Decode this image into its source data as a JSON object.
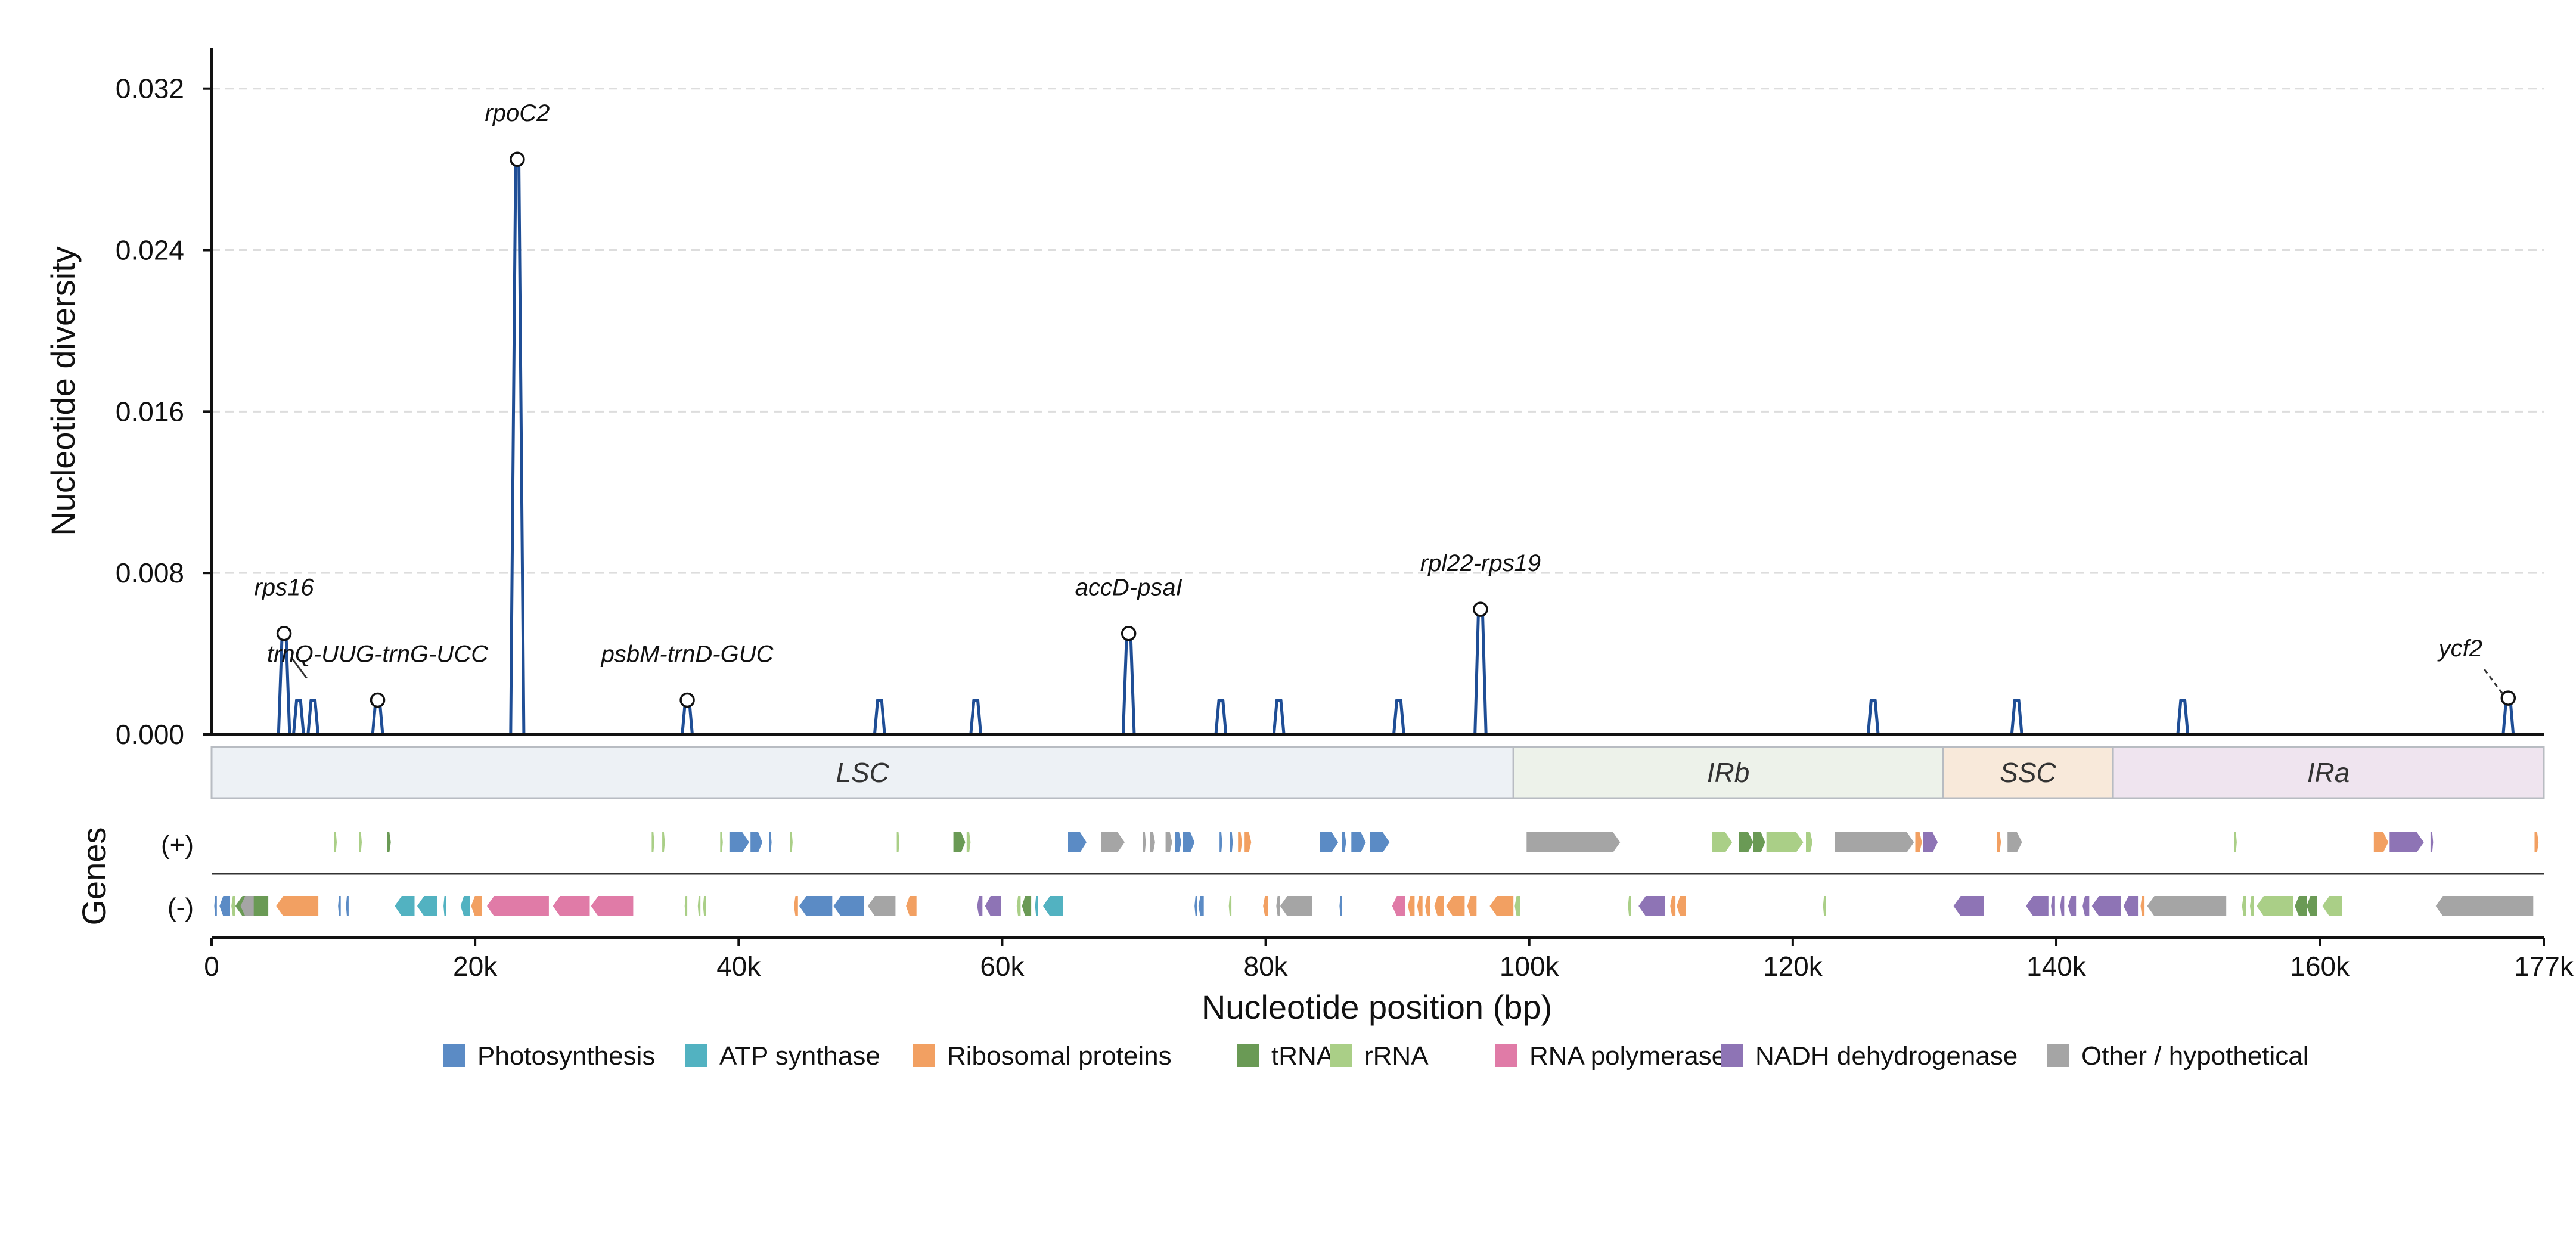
{
  "chart_data": {
    "type": "line",
    "ylabel": "Nucleotide diversity",
    "xlabel": "Nucleotide position (bp)",
    "genes_label": "Genes",
    "strand_plus_label": "(+)",
    "strand_minus_label": "(-)",
    "ylim": [
      0,
      0.034
    ],
    "xlim": [
      0,
      177000
    ],
    "yticks": [
      {
        "value": 0,
        "label": "0.000"
      },
      {
        "value": 0.008,
        "label": "0.008"
      },
      {
        "value": 0.016,
        "label": "0.016"
      },
      {
        "value": 0.024,
        "label": "0.024"
      },
      {
        "value": 0.032,
        "label": "0.032"
      }
    ],
    "xticks": [
      {
        "value": 0,
        "label": "0"
      },
      {
        "value": 20000,
        "label": "20k"
      },
      {
        "value": 40000,
        "label": "40k"
      },
      {
        "value": 60000,
        "label": "60k"
      },
      {
        "value": 80000,
        "label": "80k"
      },
      {
        "value": 100000,
        "label": "100k"
      },
      {
        "value": 120000,
        "label": "120k"
      },
      {
        "value": 140000,
        "label": "140k"
      },
      {
        "value": 160000,
        "label": "160k"
      },
      {
        "value": 177000,
        "label": "177k"
      }
    ],
    "grid": true,
    "line_color": "#1f4e96",
    "peaks": [
      {
        "x": 5500,
        "y": 0.005,
        "label": "rps16",
        "marker": true
      },
      {
        "x": 6600,
        "y": 0.0017,
        "label": "",
        "marker": false
      },
      {
        "x": 7700,
        "y": 0.0017,
        "label": "",
        "marker": false
      },
      {
        "x": 12600,
        "y": 0.0017,
        "label": "trnQ-UUG-trnG-UCC",
        "marker": true
      },
      {
        "x": 23200,
        "y": 0.0285,
        "label": "rpoC2",
        "marker": true
      },
      {
        "x": 36100,
        "y": 0.0017,
        "label": "psbM-trnD-GUC",
        "marker": true
      },
      {
        "x": 50700,
        "y": 0.0017,
        "label": "",
        "marker": false
      },
      {
        "x": 58000,
        "y": 0.0017,
        "label": "",
        "marker": false
      },
      {
        "x": 69600,
        "y": 0.005,
        "label": "accD-psaI",
        "marker": true
      },
      {
        "x": 76600,
        "y": 0.0017,
        "label": "",
        "marker": false
      },
      {
        "x": 81000,
        "y": 0.0017,
        "label": "",
        "marker": false
      },
      {
        "x": 90100,
        "y": 0.0017,
        "label": "",
        "marker": false
      },
      {
        "x": 96300,
        "y": 0.0062,
        "label": "rpl22-rps19",
        "marker": true
      },
      {
        "x": 126100,
        "y": 0.0017,
        "label": "",
        "marker": false
      },
      {
        "x": 137000,
        "y": 0.0017,
        "label": "",
        "marker": false
      },
      {
        "x": 149600,
        "y": 0.0017,
        "label": "",
        "marker": false
      },
      {
        "x": 174300,
        "y": 0.0018,
        "label": "ycf2",
        "marker": true
      }
    ],
    "regions": [
      {
        "name": "LSC",
        "start": 0,
        "end": 98800,
        "color": "#edf1f5"
      },
      {
        "name": "IRb",
        "start": 98800,
        "end": 131400,
        "color": "#edf2ea"
      },
      {
        "name": "SSC",
        "start": 131400,
        "end": 144300,
        "color": "#f8e9da"
      },
      {
        "name": "IRa",
        "start": 144300,
        "end": 177000,
        "color": "#efe4ef"
      }
    ],
    "legend": [
      {
        "name": "Photosynthesis",
        "color": "#5b8bc5"
      },
      {
        "name": "ATP synthase",
        "color": "#52b2c1"
      },
      {
        "name": "Ribosomal proteins",
        "color": "#f2a062"
      },
      {
        "name": "tRNA",
        "color": "#6a9a55"
      },
      {
        "name": "rRNA",
        "color": "#aacf87"
      },
      {
        "name": "RNA polymerase",
        "color": "#e07ba7"
      },
      {
        "name": "NADH dehydrogenase",
        "color": "#8e74b5"
      },
      {
        "name": "Other / hypothetical",
        "color": "#a5a5a5"
      }
    ],
    "genes_plus": [
      {
        "s": 9300,
        "e": 9500,
        "c": "#aacf87"
      },
      {
        "s": 11200,
        "e": 11400,
        "c": "#aacf87"
      },
      {
        "s": 13300,
        "e": 13600,
        "c": "#6a9a55"
      },
      {
        "s": 33400,
        "e": 33600,
        "c": "#aacf87"
      },
      {
        "s": 34200,
        "e": 34400,
        "c": "#aacf87"
      },
      {
        "s": 38600,
        "e": 38800,
        "c": "#aacf87"
      },
      {
        "s": 39300,
        "e": 40800,
        "c": "#5b8bc5"
      },
      {
        "s": 40900,
        "e": 41800,
        "c": "#5b8bc5"
      },
      {
        "s": 42300,
        "e": 42500,
        "c": "#5b8bc5"
      },
      {
        "s": 43900,
        "e": 44100,
        "c": "#aacf87"
      },
      {
        "s": 52000,
        "e": 52200,
        "c": "#aacf87"
      },
      {
        "s": 56300,
        "e": 57200,
        "c": "#6a9a55"
      },
      {
        "s": 57300,
        "e": 57600,
        "c": "#aacf87"
      },
      {
        "s": 65000,
        "e": 66400,
        "c": "#5b8bc5"
      },
      {
        "s": 67500,
        "e": 69300,
        "c": "#a5a5a5"
      },
      {
        "s": 70700,
        "e": 70900,
        "c": "#a5a5a5"
      },
      {
        "s": 71200,
        "e": 71600,
        "c": "#a5a5a5"
      },
      {
        "s": 72400,
        "e": 72900,
        "c": "#a5a5a5"
      },
      {
        "s": 73100,
        "e": 73600,
        "c": "#5b8bc5"
      },
      {
        "s": 73700,
        "e": 74600,
        "c": "#5b8bc5"
      },
      {
        "s": 76500,
        "e": 76700,
        "c": "#5b8bc5"
      },
      {
        "s": 77300,
        "e": 77500,
        "c": "#5b8bc5"
      },
      {
        "s": 77900,
        "e": 78200,
        "c": "#f2a062"
      },
      {
        "s": 78400,
        "e": 78900,
        "c": "#f2a062"
      },
      {
        "s": 84100,
        "e": 85500,
        "c": "#5b8bc5"
      },
      {
        "s": 85800,
        "e": 86100,
        "c": "#5b8bc5"
      },
      {
        "s": 86500,
        "e": 87600,
        "c": "#5b8bc5"
      },
      {
        "s": 87900,
        "e": 89400,
        "c": "#5b8bc5"
      },
      {
        "s": 99800,
        "e": 106900,
        "c": "#a5a5a5"
      },
      {
        "s": 113900,
        "e": 115400,
        "c": "#aacf87"
      },
      {
        "s": 115900,
        "e": 117000,
        "c": "#6a9a55"
      },
      {
        "s": 117000,
        "e": 117900,
        "c": "#6a9a55"
      },
      {
        "s": 118000,
        "e": 120800,
        "c": "#aacf87"
      },
      {
        "s": 121000,
        "e": 121500,
        "c": "#aacf87"
      },
      {
        "s": 123200,
        "e": 129200,
        "c": "#a5a5a5"
      },
      {
        "s": 129300,
        "e": 129800,
        "c": "#f2a062"
      },
      {
        "s": 129900,
        "e": 131000,
        "c": "#8e74b5"
      },
      {
        "s": 135500,
        "e": 135800,
        "c": "#f2a062"
      },
      {
        "s": 136300,
        "e": 137400,
        "c": "#a5a5a5"
      },
      {
        "s": 153500,
        "e": 153700,
        "c": "#aacf87"
      },
      {
        "s": 164100,
        "e": 165200,
        "c": "#f2a062"
      },
      {
        "s": 165300,
        "e": 167900,
        "c": "#8e74b5"
      },
      {
        "s": 168400,
        "e": 168600,
        "c": "#8e74b5"
      },
      {
        "s": 176300,
        "e": 176600,
        "c": "#f2a062"
      }
    ],
    "genes_minus": [
      {
        "s": 200,
        "e": 400,
        "c": "#5b8bc5"
      },
      {
        "s": 600,
        "e": 1400,
        "c": "#5b8bc5"
      },
      {
        "s": 1500,
        "e": 1800,
        "c": "#aacf87"
      },
      {
        "s": 1800,
        "e": 4300,
        "c": "#6a9a55"
      },
      {
        "s": 2200,
        "e": 3200,
        "c": "#a5a5a5"
      },
      {
        "s": 4900,
        "e": 8100,
        "c": "#f2a062"
      },
      {
        "s": 9600,
        "e": 9800,
        "c": "#5b8bc5"
      },
      {
        "s": 10200,
        "e": 10400,
        "c": "#5b8bc5"
      },
      {
        "s": 13900,
        "e": 15400,
        "c": "#52b2c1"
      },
      {
        "s": 15600,
        "e": 17100,
        "c": "#52b2c1"
      },
      {
        "s": 17600,
        "e": 17800,
        "c": "#52b2c1"
      },
      {
        "s": 18900,
        "e": 19600,
        "c": "#52b2c1"
      },
      {
        "s": 19700,
        "e": 20500,
        "c": "#f2a062"
      },
      {
        "s": 20900,
        "e": 25600,
        "c": "#e07ba7"
      },
      {
        "s": 25900,
        "e": 28700,
        "c": "#e07ba7"
      },
      {
        "s": 28800,
        "e": 32000,
        "c": "#e07ba7"
      },
      {
        "s": 35900,
        "e": 36100,
        "c": "#aacf87"
      },
      {
        "s": 36900,
        "e": 37100,
        "c": "#aacf87"
      },
      {
        "s": 37300,
        "e": 37500,
        "c": "#aacf87"
      },
      {
        "s": 44200,
        "e": 44500,
        "c": "#f2a062"
      },
      {
        "s": 44600,
        "e": 47100,
        "c": "#5b8bc5"
      },
      {
        "s": 47200,
        "e": 49500,
        "c": "#5b8bc5"
      },
      {
        "s": 49800,
        "e": 51900,
        "c": "#a5a5a5"
      },
      {
        "s": 52700,
        "e": 53500,
        "c": "#f2a062"
      },
      {
        "s": 58100,
        "e": 58500,
        "c": "#8e74b5"
      },
      {
        "s": 58700,
        "e": 59900,
        "c": "#8e74b5"
      },
      {
        "s": 61100,
        "e": 61400,
        "c": "#aacf87"
      },
      {
        "s": 61500,
        "e": 62200,
        "c": "#6a9a55"
      },
      {
        "s": 62500,
        "e": 62700,
        "c": "#52b2c1"
      },
      {
        "s": 63100,
        "e": 64600,
        "c": "#52b2c1"
      },
      {
        "s": 74600,
        "e": 74800,
        "c": "#5b8bc5"
      },
      {
        "s": 74900,
        "e": 75300,
        "c": "#5b8bc5"
      },
      {
        "s": 77200,
        "e": 77400,
        "c": "#aacf87"
      },
      {
        "s": 79800,
        "e": 80200,
        "c": "#f2a062"
      },
      {
        "s": 80800,
        "e": 81100,
        "c": "#a5a5a5"
      },
      {
        "s": 81100,
        "e": 83500,
        "c": "#a5a5a5"
      },
      {
        "s": 85600,
        "e": 85800,
        "c": "#5b8bc5"
      },
      {
        "s": 89600,
        "e": 90600,
        "c": "#e07ba7"
      },
      {
        "s": 90800,
        "e": 91300,
        "c": "#f2a062"
      },
      {
        "s": 91500,
        "e": 91900,
        "c": "#f2a062"
      },
      {
        "s": 92100,
        "e": 92500,
        "c": "#f2a062"
      },
      {
        "s": 92800,
        "e": 93500,
        "c": "#f2a062"
      },
      {
        "s": 93700,
        "e": 95100,
        "c": "#f2a062"
      },
      {
        "s": 95300,
        "e": 96000,
        "c": "#f2a062"
      },
      {
        "s": 97000,
        "e": 98800,
        "c": "#f2a062"
      },
      {
        "s": 98900,
        "e": 99300,
        "c": "#aacf87"
      },
      {
        "s": 107500,
        "e": 107700,
        "c": "#aacf87"
      },
      {
        "s": 108300,
        "e": 110300,
        "c": "#8e74b5"
      },
      {
        "s": 110700,
        "e": 111100,
        "c": "#f2a062"
      },
      {
        "s": 111200,
        "e": 111900,
        "c": "#f2a062"
      },
      {
        "s": 122300,
        "e": 122500,
        "c": "#aacf87"
      },
      {
        "s": 132200,
        "e": 134500,
        "c": "#8e74b5"
      },
      {
        "s": 137700,
        "e": 139400,
        "c": "#8e74b5"
      },
      {
        "s": 139600,
        "e": 139900,
        "c": "#8e74b5"
      },
      {
        "s": 140300,
        "e": 140600,
        "c": "#8e74b5"
      },
      {
        "s": 140900,
        "e": 141500,
        "c": "#8e74b5"
      },
      {
        "s": 142000,
        "e": 142500,
        "c": "#8e74b5"
      },
      {
        "s": 142700,
        "e": 144900,
        "c": "#8e74b5"
      },
      {
        "s": 145100,
        "e": 146200,
        "c": "#8e74b5"
      },
      {
        "s": 146400,
        "e": 146700,
        "c": "#f2a062"
      },
      {
        "s": 146900,
        "e": 152900,
        "c": "#a5a5a5"
      },
      {
        "s": 154100,
        "e": 154400,
        "c": "#aacf87"
      },
      {
        "s": 154700,
        "e": 155000,
        "c": "#aacf87"
      },
      {
        "s": 155200,
        "e": 158000,
        "c": "#aacf87"
      },
      {
        "s": 158100,
        "e": 159000,
        "c": "#6a9a55"
      },
      {
        "s": 159000,
        "e": 159800,
        "c": "#6a9a55"
      },
      {
        "s": 160200,
        "e": 161700,
        "c": "#aacf87"
      },
      {
        "s": 168800,
        "e": 176200,
        "c": "#a5a5a5"
      }
    ]
  }
}
